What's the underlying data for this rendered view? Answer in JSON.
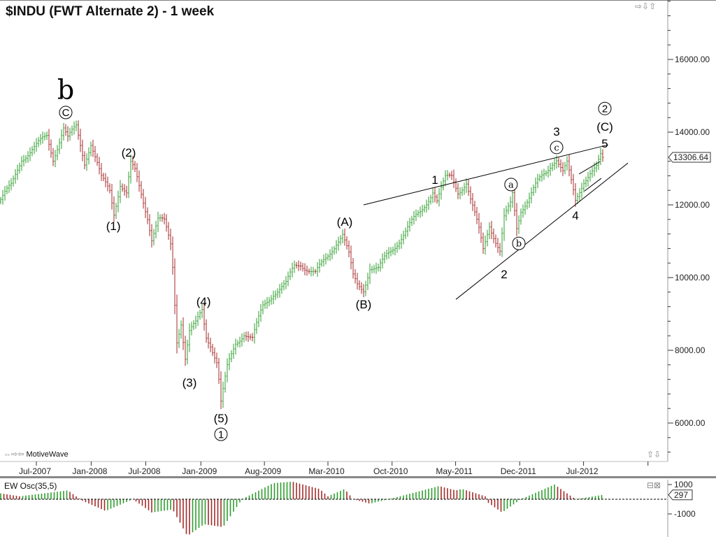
{
  "title": "$INDU (FWT Alternate 2) - 1 week",
  "brand": "MotiveWave",
  "icons": {
    "nav_left_right": "arrows-left-right-icon",
    "scroll_up_down": "arrows-up-down-icon",
    "panel_restore": "restore-icon",
    "panel_close": "close-icon"
  },
  "colors": {
    "up": "#2e9e2e",
    "down": "#a52a2a",
    "line": "#000000"
  },
  "chart_data": [
    {
      "type": "ohlc",
      "title": "$INDU (FWT Alternate 2) - 1 week",
      "timeframe": "1 week",
      "x_ticks": [
        {
          "label": "Jul-2007",
          "date": "2007-07-02"
        },
        {
          "label": "Jan-2008",
          "date": "2008-01-01"
        },
        {
          "label": "Jul-2008",
          "date": "2008-07-01"
        },
        {
          "label": "Jan-2009",
          "date": "2009-01-01"
        },
        {
          "label": "Aug-2009",
          "date": "2009-08-01"
        },
        {
          "label": "Mar-2010",
          "date": "2010-03-01"
        },
        {
          "label": "Oct-2010",
          "date": "2010-10-01"
        },
        {
          "label": "May-2011",
          "date": "2011-05-01"
        },
        {
          "label": "Dec-2011",
          "date": "2011-12-01"
        },
        {
          "label": "Jul-2012",
          "date": "2012-07-01"
        },
        {
          "label": "",
          "date": "2013-02-01"
        }
      ],
      "y_ticks": [
        "6000.00",
        "8000.00",
        "10000.00",
        "12000.00",
        "14000.00",
        "16000.00"
      ],
      "ylim": [
        5000,
        17650
      ],
      "last_price": "13306.64",
      "close_path": [
        [
          "2007-03-05",
          12150
        ],
        [
          "2007-04-09",
          12500
        ],
        [
          "2007-05-14",
          13300
        ],
        [
          "2007-07-02",
          13600
        ],
        [
          "2007-08-06",
          13900
        ],
        [
          "2007-08-27",
          13300
        ],
        [
          "2007-10-01",
          14100
        ],
        [
          "2007-10-15",
          13800
        ],
        [
          "2007-11-12",
          14150
        ],
        [
          "2007-12-10",
          13200
        ],
        [
          "2007-12-31",
          13700
        ],
        [
          "2008-02-04",
          12700
        ],
        [
          "2008-03-03",
          12400
        ],
        [
          "2008-03-17",
          11800
        ],
        [
          "2008-04-07",
          12600
        ],
        [
          "2008-04-28",
          12300
        ],
        [
          "2008-05-12",
          13100
        ],
        [
          "2008-05-26",
          12900
        ],
        [
          "2008-06-09",
          12500
        ],
        [
          "2008-07-07",
          11700
        ],
        [
          "2008-07-21",
          11100
        ],
        [
          "2008-08-11",
          11600
        ],
        [
          "2008-09-01",
          11500
        ],
        [
          "2008-09-22",
          10900
        ],
        [
          "2008-09-29",
          10300
        ],
        [
          "2008-10-13",
          8300
        ],
        [
          "2008-10-27",
          8800
        ],
        [
          "2008-11-10",
          7800
        ],
        [
          "2008-11-24",
          8500
        ],
        [
          "2008-12-15",
          8700
        ],
        [
          "2009-01-05",
          9100
        ],
        [
          "2009-01-19",
          8400
        ],
        [
          "2009-02-02",
          8200
        ],
        [
          "2009-02-23",
          7700
        ],
        [
          "2009-03-02",
          7200
        ],
        [
          "2009-03-09",
          6550
        ],
        [
          "2009-03-30",
          7500
        ],
        [
          "2009-04-27",
          8200
        ],
        [
          "2009-05-25",
          8500
        ],
        [
          "2009-06-22",
          8300
        ],
        [
          "2009-07-27",
          9200
        ],
        [
          "2009-08-31",
          9600
        ],
        [
          "2009-10-12",
          9800
        ],
        [
          "2009-11-09",
          10300
        ],
        [
          "2009-11-30",
          10400
        ],
        [
          "2010-01-18",
          10100
        ],
        [
          "2010-02-22",
          10500
        ],
        [
          "2010-03-29",
          11000
        ],
        [
          "2010-04-19",
          11200
        ],
        [
          "2010-05-10",
          10600
        ],
        [
          "2010-05-24",
          10000
        ],
        [
          "2010-06-07",
          9800
        ],
        [
          "2010-06-28",
          9700
        ],
        [
          "2010-07-19",
          10300
        ],
        [
          "2010-08-16",
          10200
        ],
        [
          "2010-09-13",
          10600
        ],
        [
          "2010-10-11",
          10900
        ],
        [
          "2010-11-08",
          11200
        ],
        [
          "2010-12-06",
          11500
        ],
        [
          "2011-01-03",
          11800
        ],
        [
          "2011-01-31",
          12200
        ],
        [
          "2011-02-14",
          12400
        ],
        [
          "2011-02-28",
          12100
        ],
        [
          "2011-03-28",
          12700
        ],
        [
          "2011-04-18",
          12800
        ],
        [
          "2011-05-09",
          12400
        ],
        [
          "2011-06-06",
          12600
        ],
        [
          "2011-06-20",
          12100
        ],
        [
          "2011-07-18",
          11300
        ],
        [
          "2011-08-01",
          10800
        ],
        [
          "2011-08-22",
          11500
        ],
        [
          "2011-09-12",
          11000
        ],
        [
          "2011-09-26",
          10700
        ],
        [
          "2011-10-10",
          11600
        ],
        [
          "2011-10-31",
          12000
        ],
        [
          "2011-11-07",
          12300
        ],
        [
          "2011-11-21",
          11400
        ],
        [
          "2011-12-05",
          11900
        ],
        [
          "2012-01-02",
          12200
        ],
        [
          "2012-01-30",
          12600
        ],
        [
          "2012-02-27",
          12900
        ],
        [
          "2012-03-19",
          13200
        ],
        [
          "2012-04-02",
          13300
        ],
        [
          "2012-04-23",
          12900
        ],
        [
          "2012-05-07",
          13100
        ],
        [
          "2012-05-21",
          12600
        ],
        [
          "2012-06-04",
          12100
        ],
        [
          "2012-07-02",
          12700
        ],
        [
          "2012-07-23",
          12900
        ],
        [
          "2012-08-13",
          13000
        ],
        [
          "2012-08-27",
          13300
        ],
        [
          "2012-09-03",
          13306.64
        ]
      ],
      "wave_labels": [
        {
          "text": "b",
          "date": "2007-10-08",
          "price": 15170,
          "style": "serif-large"
        },
        {
          "text": "C",
          "date": "2007-10-08",
          "price": 14540,
          "circled": true
        },
        {
          "text": "(1)",
          "date": "2008-03-15",
          "price": 11420
        },
        {
          "text": "(2)",
          "date": "2008-05-05",
          "price": 13440
        },
        {
          "text": "(3)",
          "date": "2008-11-24",
          "price": 7120
        },
        {
          "text": "(4)",
          "date": "2009-01-10",
          "price": 9350
        },
        {
          "text": "(5)",
          "date": "2009-03-09",
          "price": 6130
        },
        {
          "text": "1",
          "date": "2009-03-09",
          "price": 5690,
          "circled": true
        },
        {
          "text": "(A)",
          "date": "2010-04-26",
          "price": 11540
        },
        {
          "text": "(B)",
          "date": "2010-06-28",
          "price": 9270
        },
        {
          "text": "1",
          "date": "2011-02-21",
          "price": 12690
        },
        {
          "text": "2",
          "date": "2011-10-10",
          "price": 10100
        },
        {
          "text": "a",
          "date": "2011-11-02",
          "price": 12560,
          "circled": true,
          "style": "serif"
        },
        {
          "text": "b",
          "date": "2011-11-28",
          "price": 10940,
          "circled": true,
          "style": "serif"
        },
        {
          "text": "c",
          "date": "2012-04-02",
          "price": 13580,
          "circled": true,
          "style": "serif"
        },
        {
          "text": "3",
          "date": "2012-04-02",
          "price": 14020
        },
        {
          "text": "4",
          "date": "2012-06-04",
          "price": 11710
        },
        {
          "text": "5",
          "date": "2012-09-10",
          "price": 13690
        },
        {
          "text": "(C)",
          "date": "2012-09-10",
          "price": 14150
        },
        {
          "text": "2",
          "date": "2012-09-10",
          "price": 14650,
          "circled": true
        }
      ],
      "trendlines": [
        [
          [
            "2010-06-28",
            12000
          ],
          [
            "2012-09-21",
            13650
          ]
        ],
        [
          [
            "2011-05-02",
            9400
          ],
          [
            "2012-11-26",
            13150
          ]
        ],
        [
          [
            "2012-06-16",
            12850
          ],
          [
            "2012-08-25",
            13190
          ]
        ],
        [
          [
            "2012-07-04",
            12380
          ],
          [
            "2012-08-29",
            12730
          ]
        ]
      ]
    },
    {
      "type": "histogram",
      "title": "EW Osc(35,5)",
      "y_ticks": [
        "1000",
        "-1000"
      ],
      "last_value": "297",
      "path": [
        [
          "2007-03-05",
          400
        ],
        [
          "2007-05-07",
          200
        ],
        [
          "2007-10-15",
          600
        ],
        [
          "2007-12-03",
          -100
        ],
        [
          "2008-02-18",
          -800
        ],
        [
          "2008-05-19",
          0
        ],
        [
          "2008-07-21",
          -900
        ],
        [
          "2008-09-29",
          -700
        ],
        [
          "2008-11-17",
          -2500
        ],
        [
          "2009-01-12",
          -1700
        ],
        [
          "2009-03-16",
          -1900
        ],
        [
          "2009-05-18",
          0
        ],
        [
          "2009-08-31",
          1100
        ],
        [
          "2009-11-02",
          1200
        ],
        [
          "2010-02-01",
          700
        ],
        [
          "2010-03-01",
          200
        ],
        [
          "2010-04-26",
          700
        ],
        [
          "2010-05-24",
          0
        ],
        [
          "2010-07-19",
          -300
        ],
        [
          "2010-09-20",
          0
        ],
        [
          "2011-03-07",
          900
        ],
        [
          "2011-05-02",
          600
        ],
        [
          "2011-05-23",
          700
        ],
        [
          "2011-08-08",
          200
        ],
        [
          "2011-08-15",
          -200
        ],
        [
          "2011-10-03",
          -900
        ],
        [
          "2011-12-05",
          0
        ],
        [
          "2012-03-26",
          1000
        ],
        [
          "2012-06-04",
          0
        ],
        [
          "2012-09-03",
          297
        ]
      ]
    }
  ]
}
